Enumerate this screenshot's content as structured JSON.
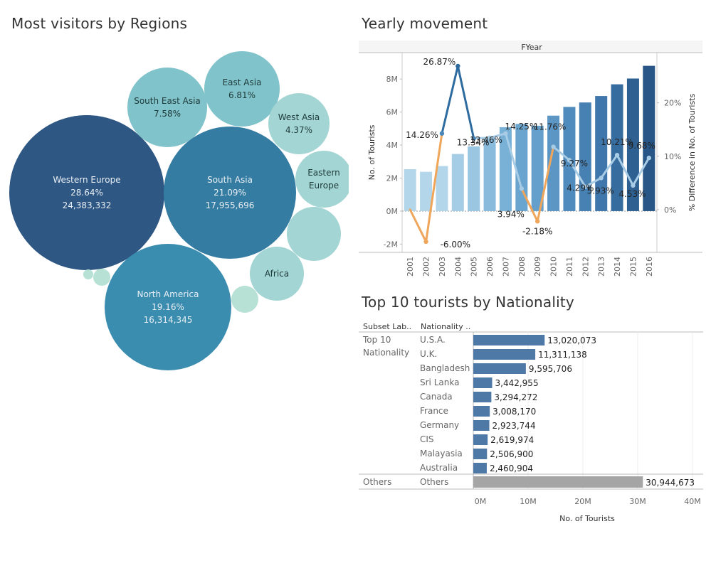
{
  "regions": {
    "title": "Most visitors by Regions",
    "chart_data": {
      "type": "bubble",
      "bubbles": [
        {
          "name": "Western Europe",
          "pct": "28.64%",
          "value": "24,383,332",
          "color": "#2e5783"
        },
        {
          "name": "South Asia",
          "pct": "21.09%",
          "value": "17,955,696",
          "color": "#357ca2"
        },
        {
          "name": "North America",
          "pct": "19.16%",
          "value": "16,314,345",
          "color": "#3b8daf"
        },
        {
          "name": "South East Asia",
          "pct": "7.58%",
          "value": "",
          "color": "#81c3ca"
        },
        {
          "name": "East Asia",
          "pct": "6.81%",
          "value": "",
          "color": "#81c3ca"
        },
        {
          "name": "West Asia",
          "pct": "4.37%",
          "value": "",
          "color": "#a2d5d3"
        },
        {
          "name": "Eastern Europe",
          "pct": "",
          "value": "",
          "color": "#a2d5d3"
        },
        {
          "name": "",
          "pct": "",
          "value": "",
          "color": "#a2d5d3"
        },
        {
          "name": "Africa",
          "pct": "",
          "value": "",
          "color": "#a2d5d3"
        },
        {
          "name": "",
          "pct": "",
          "value": "",
          "color": "#b6e1d4"
        },
        {
          "name": "",
          "pct": "",
          "value": "",
          "color": "#b6e1d4"
        },
        {
          "name": "",
          "pct": "",
          "value": "",
          "color": "#b6e1d4"
        }
      ]
    }
  },
  "yearly": {
    "title": "Yearly movement",
    "chart_data": {
      "type": "bar",
      "header": "FYear",
      "categories": [
        "2001",
        "2002",
        "2003",
        "2004",
        "2005",
        "2006",
        "2007",
        "2008",
        "2009",
        "2010",
        "2011",
        "2012",
        "2013",
        "2014",
        "2015",
        "2016"
      ],
      "bars": [
        2.54,
        2.38,
        2.73,
        3.46,
        3.92,
        4.45,
        5.08,
        5.28,
        5.17,
        5.78,
        6.31,
        6.58,
        6.97,
        7.68,
        8.03,
        8.8
      ],
      "bar_colors": [
        "#b4d6ea",
        "#b4d6ea",
        "#b4d6ea",
        "#a5cde6",
        "#9ac6e2",
        "#89bbdc",
        "#78b0d6",
        "#6aa5cf",
        "#64a0cb",
        "#5b96c4",
        "#4f8bbc",
        "#4781b4",
        "#3f76ab",
        "#376c9f",
        "#2e6192",
        "#285687"
      ],
      "pct_diff": [
        null,
        -6.0,
        14.26,
        26.87,
        13.34,
        13.46,
        14.25,
        3.94,
        -2.18,
        11.76,
        9.27,
        4.29,
        5.93,
        10.21,
        4.53,
        9.68
      ],
      "pct_labels": [
        "",
        "-6.00%",
        "14.26%",
        "26.87%",
        "13.34%",
        "13.46%",
        "14.25%",
        "3.94%",
        "-2.18%",
        "11.76%",
        "9.27%",
        "4.29%",
        "5.93%",
        "10.21%",
        "4.53%",
        "9.68%"
      ],
      "y_left": {
        "label": "No. of Tourists",
        "ticks": [
          "-2M",
          "0M",
          "2M",
          "4M",
          "6M",
          "8M"
        ],
        "range": [
          -2.5,
          9.6
        ]
      },
      "y_right": {
        "label": "% Difference in No. of Tourists",
        "ticks": [
          "0%",
          "10%",
          "20%"
        ],
        "range": [
          -8,
          29.4
        ]
      },
      "line_colors": {
        "neg": "#f0a65a",
        "pos_light": "#a9cce6",
        "pos_dark": "#2e6b9f"
      }
    }
  },
  "nationality": {
    "title": "Top 10 tourists by Nationality",
    "chart_data": {
      "type": "bar",
      "col_headers": [
        "Subset Lab..",
        "Nationality .."
      ],
      "group_top": "Top 10\nNationality",
      "group_others": "Others",
      "rows": [
        {
          "name": "U.S.A.",
          "value": 13020073,
          "label": "13,020,073"
        },
        {
          "name": "U.K.",
          "value": 11311138,
          "label": "11,311,138"
        },
        {
          "name": "Bangladesh",
          "value": 9595706,
          "label": "9,595,706"
        },
        {
          "name": "Sri Lanka",
          "value": 3442955,
          "label": "3,442,955"
        },
        {
          "name": "Canada",
          "value": 3294272,
          "label": "3,294,272"
        },
        {
          "name": "France",
          "value": 3008170,
          "label": "3,008,170"
        },
        {
          "name": "Germany",
          "value": 2923744,
          "label": "2,923,744"
        },
        {
          "name": "CIS",
          "value": 2619974,
          "label": "2,619,974"
        },
        {
          "name": "Malayasia",
          "value": 2506900,
          "label": "2,506,900"
        },
        {
          "name": "Australia",
          "value": 2460904,
          "label": "2,460,904"
        }
      ],
      "others": {
        "name": "Others",
        "value": 30944673,
        "label": "30,944,673"
      },
      "x_ticks": [
        "0M",
        "10M",
        "20M",
        "30M",
        "40M"
      ],
      "x_range": [
        0,
        40000000
      ],
      "xlabel": "No. of Tourists",
      "colors": {
        "top": "#4e79a7",
        "others": "#a5a5a5"
      }
    }
  }
}
